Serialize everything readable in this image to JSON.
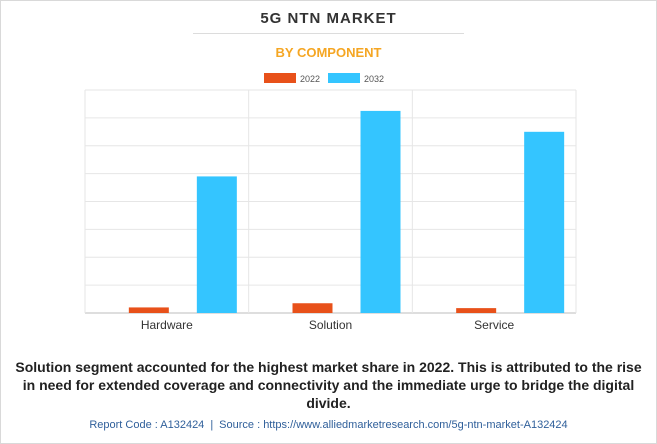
{
  "header": {
    "title": "5G NTN MARKET",
    "subtitle": "BY COMPONENT"
  },
  "chart_data": {
    "type": "bar",
    "categories": [
      "Hardware",
      "Solution",
      "Service"
    ],
    "series": [
      {
        "name": "2022",
        "color": "#e8511a",
        "values": [
          4,
          7,
          3.5
        ]
      },
      {
        "name": "2032",
        "color": "#34c5ff",
        "values": [
          98,
          145,
          130
        ]
      }
    ],
    "ylim": [
      0,
      160
    ],
    "grid": true,
    "legend": "top-center",
    "xlabel": "",
    "ylabel": ""
  },
  "caption": "Solution segment accounted for the highest market share in 2022. This is attributed to the rise in need for extended coverage and connectivity and the immediate urge to bridge the digital divide.",
  "footer": {
    "report_code": "Report Code : A132424",
    "separator": "|",
    "source": "Source : https://www.alliedmarketresearch.com/5g-ntn-market-A132424"
  }
}
